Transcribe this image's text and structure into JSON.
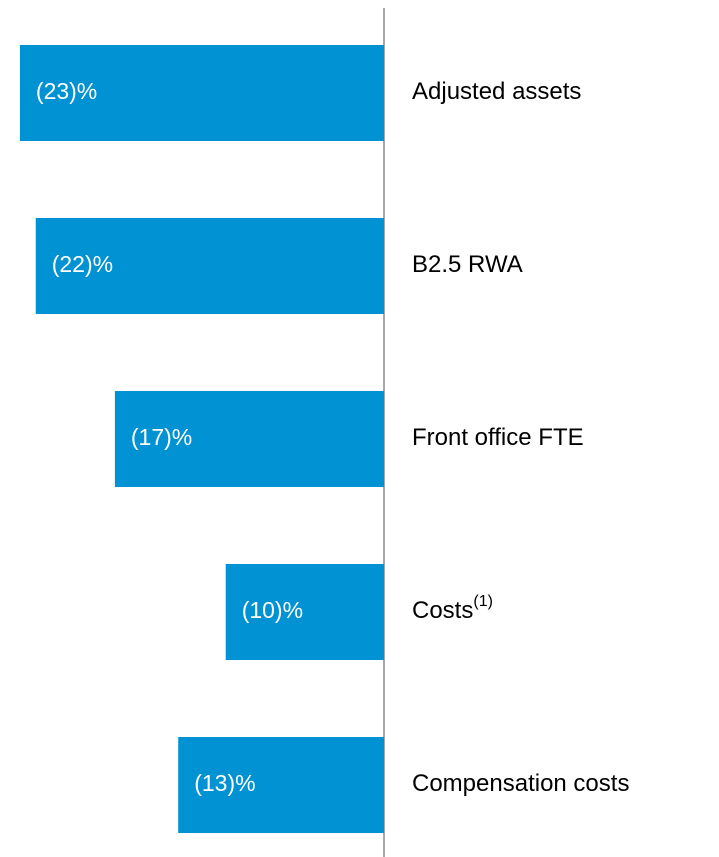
{
  "chart_data": {
    "type": "barh",
    "categories": [
      "Adjusted assets",
      "B2.5 RWA",
      "Front office FTE",
      "Costs",
      "Compensation costs"
    ],
    "category_superscripts": [
      null,
      null,
      null,
      "(1)",
      null
    ],
    "values": [
      -23,
      -22,
      -17,
      -10,
      -13
    ],
    "value_labels": [
      "(23)%",
      "(22)%",
      "(17)%",
      "(10)%",
      "(13)%"
    ],
    "color": "#0092d2"
  }
}
